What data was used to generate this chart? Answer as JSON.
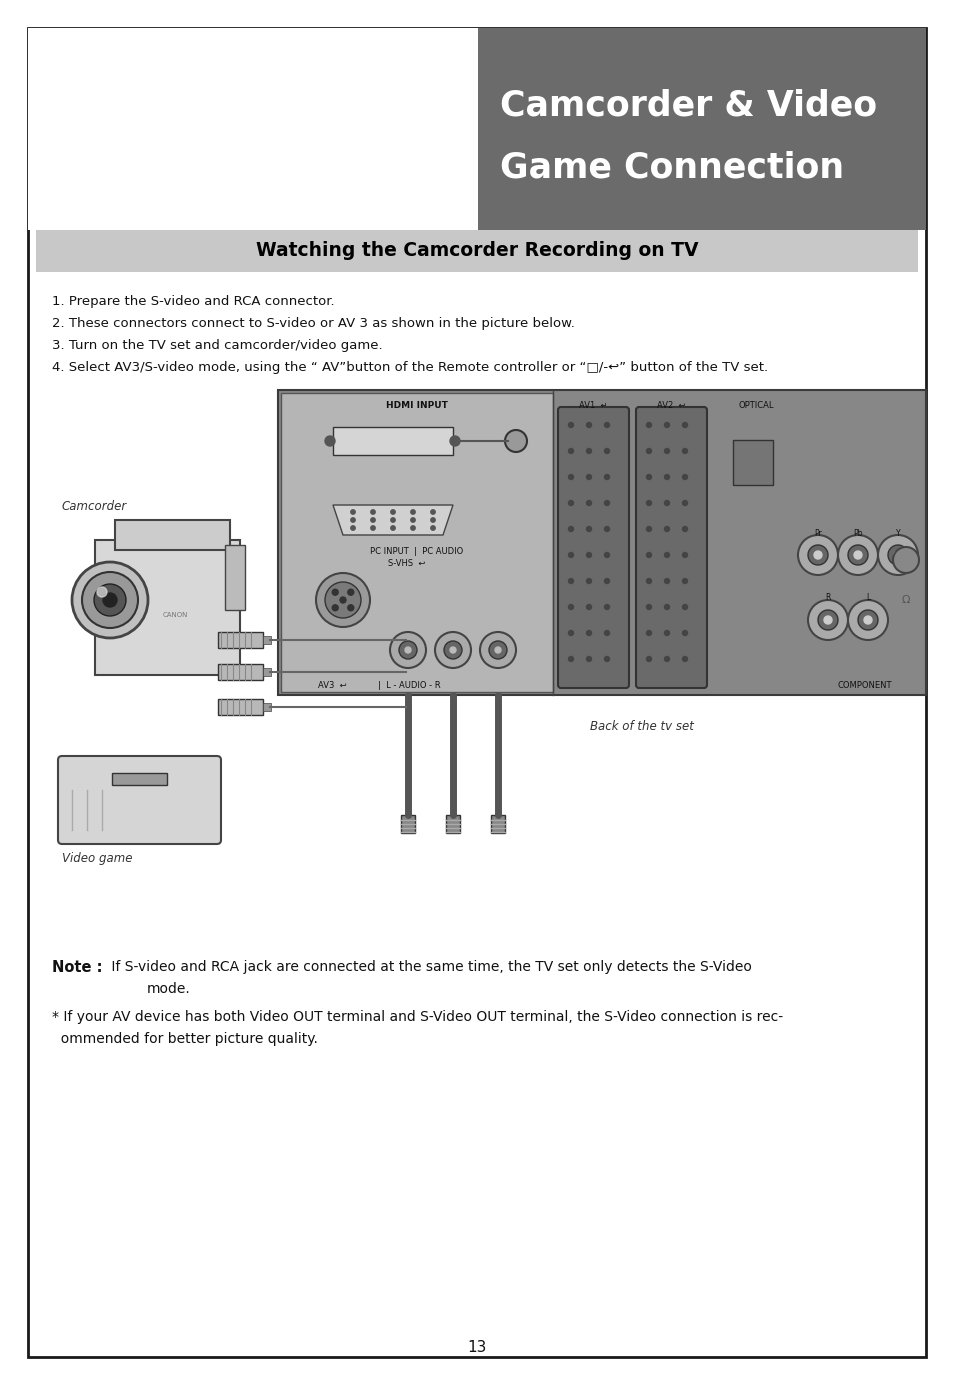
{
  "page_bg": "#ffffff",
  "border_color": "#1a1a1a",
  "header_bg": "#6b6b6b",
  "header_text_line1": "Camcorder & Video",
  "header_text_line2": "Game Connection",
  "header_text_color": "#ffffff",
  "subheader_bg": "#c8c8c8",
  "subheader_text": "Watching the Camcorder Recording on TV",
  "subheader_text_color": "#000000",
  "body_lines": [
    "1. Prepare the S-video and RCA connector.",
    "2. These connectors connect to S-video or AV 3 as shown in the picture below.",
    "3. Turn on the TV set and camcorder/video game.",
    "4. Select AV3/S-video mode, using the “ AV”button of the Remote controller or “□/-↩” button of the TV set."
  ],
  "diagram_label_back": "Back of the tv set",
  "diagram_label_camcorder": "Camcorder",
  "diagram_label_videogame": "Video game",
  "note_bold": "Note :",
  "note_text1": " If S-video and RCA jack are connected at the same time, the TV set only detects the S-Video",
  "note_text2": "mode.",
  "note2_text": "* If your AV device has both Video OUT terminal and S-Video OUT terminal, the S-Video connection is rec-",
  "note2_text2": "  ommended for better picture quality.",
  "page_number": "13"
}
